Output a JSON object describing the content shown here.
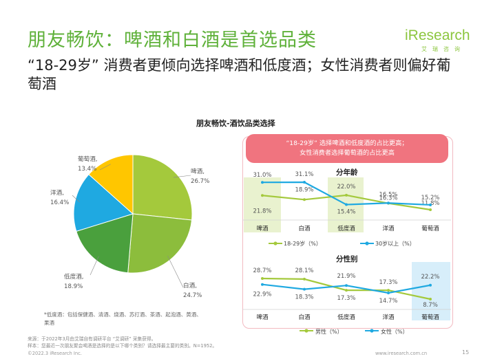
{
  "page": {
    "title": "朋友畅饮：啤酒和白酒是首选品类",
    "subtitle": "“18-29岁” 消费者更倾向选择啤酒和低度酒；女性消费者则偏好葡萄酒",
    "logo": "iResearch",
    "logo_cn": "艾瑞咨询",
    "chart_title": "朋友畅饮-酒饮品类选择",
    "note": "*低度酒：包括保健酒、清酒、烧酒、苏打酒、茶酒、起泡酒、黄酒、果酒",
    "source_line1": "来源：于2022年3月由艾瑞自有调研平台 “艾调研” 采集获得。",
    "source_line2": "样本：您最近一次朋友聚会喝酒是选择的是以下哪个类别？请选择最主要的类别。N=1952。",
    "footer_left": "©2022.3 iResearch Inc.",
    "footer_right": "www.iresearch.com.cn",
    "page_number": "15"
  },
  "panel": {
    "banner_line1": "“18-29岁” 选择啤酒和低度酒的占比更高；",
    "banner_line2": "女性消费者选择葡萄酒的占比更高",
    "age_title": "分年龄",
    "gender_title": "分性别"
  },
  "colors": {
    "green": "#a4c93c",
    "blue": "#1fa9e1",
    "yellow": "#ffc600",
    "darkgreen": "#4aa03d",
    "accent": "#5fb13a",
    "banner": "#f0747f"
  },
  "chart_data": [
    {
      "type": "pie",
      "title": "朋友畅饮-酒饮品类选择",
      "labels": [
        "啤酒,",
        "白酒,",
        "低度酒,",
        "洋酒,",
        "葡萄酒,"
      ],
      "values": [
        26.7,
        24.7,
        18.9,
        16.4,
        13.4
      ],
      "value_labels": [
        "26.7%",
        "24.7%",
        "18.9%",
        "16.4%",
        "13.4%"
      ],
      "colors": [
        "#a4c93c",
        "#8cbd3c",
        "#4aa03d",
        "#1fa9e1",
        "#ffc600"
      ]
    },
    {
      "type": "line",
      "title": "分年龄",
      "categories": [
        "啤酒",
        "白酒",
        "低度酒",
        "洋酒",
        "葡萄酒"
      ],
      "series": [
        {
          "name": "18-29岁（%）",
          "values": [
            21.8,
            18.9,
            22.0,
            16.3,
            11.8
          ],
          "labels": [
            "21.8%",
            "18.9%",
            "22.0%",
            "16.3%",
            "11.8%"
          ]
        },
        {
          "name": "30岁以上（%）",
          "values": [
            31.0,
            31.1,
            15.4,
            16.5,
            15.2
          ],
          "labels": [
            "31.0%",
            "31.1%",
            "15.4%",
            "16.5%",
            "15.2%"
          ]
        }
      ]
    },
    {
      "type": "line",
      "title": "分性别",
      "categories": [
        "啤酒",
        "白酒",
        "低度酒",
        "洋酒",
        "葡萄酒"
      ],
      "series": [
        {
          "name": "男性（%）",
          "values": [
            28.7,
            28.1,
            17.3,
            17.3,
            8.7
          ],
          "labels": [
            "28.7%",
            "28.1%",
            "17.3%",
            "17.3%",
            "8.7%"
          ]
        },
        {
          "name": "女性（%）",
          "values": [
            22.9,
            18.3,
            21.9,
            14.7,
            22.2
          ],
          "labels": [
            "22.9%",
            "18.3%",
            "21.9%",
            "14.7%",
            "22.2%"
          ]
        }
      ]
    }
  ]
}
